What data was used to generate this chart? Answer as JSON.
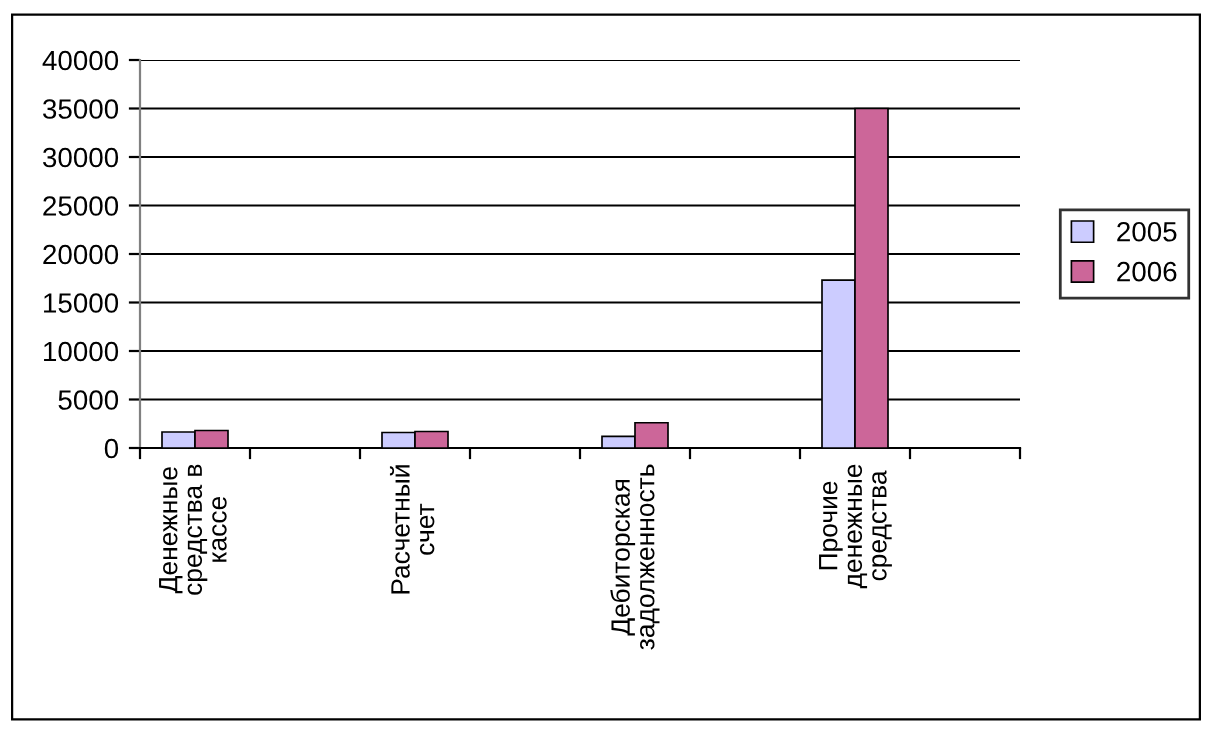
{
  "chart_data": {
    "type": "bar",
    "categories": [
      "Денежные\nсредства в\nкассе",
      null,
      "Расчетный\nсчет",
      null,
      "Дебиторская\nзадолженность",
      null,
      "Прочие\nденежные\nсредства",
      null
    ],
    "series": [
      {
        "name": "2005",
        "color": "#ccccff",
        "values": [
          1650,
          null,
          1600,
          null,
          1200,
          null,
          17300,
          null
        ]
      },
      {
        "name": "2006",
        "color": "#cc6699",
        "values": [
          1800,
          null,
          1700,
          null,
          2600,
          null,
          35000,
          null
        ]
      }
    ],
    "ylim": [
      0,
      40000
    ],
    "yticks": [
      0,
      5000,
      10000,
      15000,
      20000,
      25000,
      30000,
      35000,
      40000
    ],
    "grid": "y",
    "legend": "right"
  }
}
